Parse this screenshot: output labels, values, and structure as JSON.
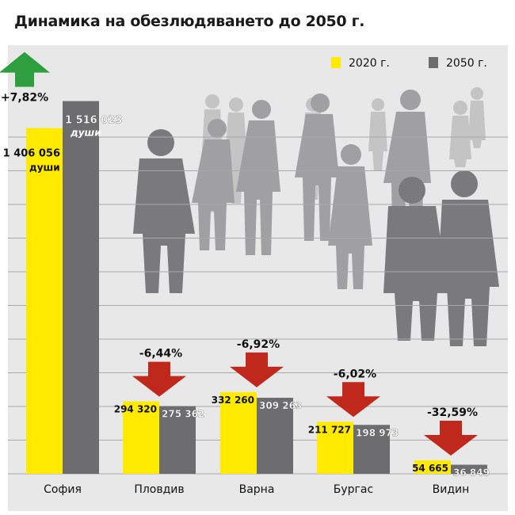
{
  "chart_data": {
    "type": "bar",
    "title": "Динамика на обезлюдяването до 2050 г.",
    "categories": [
      "София",
      "Пловдив",
      "Варна",
      "Бургас",
      "Видин"
    ],
    "series": [
      {
        "name": "2020 г.",
        "values": [
          1406056,
          294320,
          332260,
          211727,
          54665
        ],
        "color": "#ffea00"
      },
      {
        "name": "2050 г.",
        "values": [
          1516023,
          275362,
          309263,
          198973,
          36849
        ],
        "color": "#6d6d6f"
      }
    ],
    "value_labels_2020": [
      "1 406 056",
      "294 320",
      "332 260",
      "211 727",
      "54 665"
    ],
    "value_labels_2050": [
      "1 516 023",
      "275 362",
      "309 263",
      "198 973",
      "36 849"
    ],
    "unit_label": "души",
    "changes": [
      "+7,82%",
      "-6,44%",
      "-6,92%",
      "-6,02%",
      "-32,59%"
    ],
    "change_direction": [
      "up",
      "down",
      "down",
      "down",
      "down"
    ],
    "ylim": [
      0,
      1650000
    ],
    "grid": true,
    "legend_position": "top-right",
    "colors": {
      "up_arrow": "#2e9e3e",
      "down_arrow": "#c0281c",
      "background": "#e8e8e8",
      "grid": "#a9a9a9"
    }
  }
}
